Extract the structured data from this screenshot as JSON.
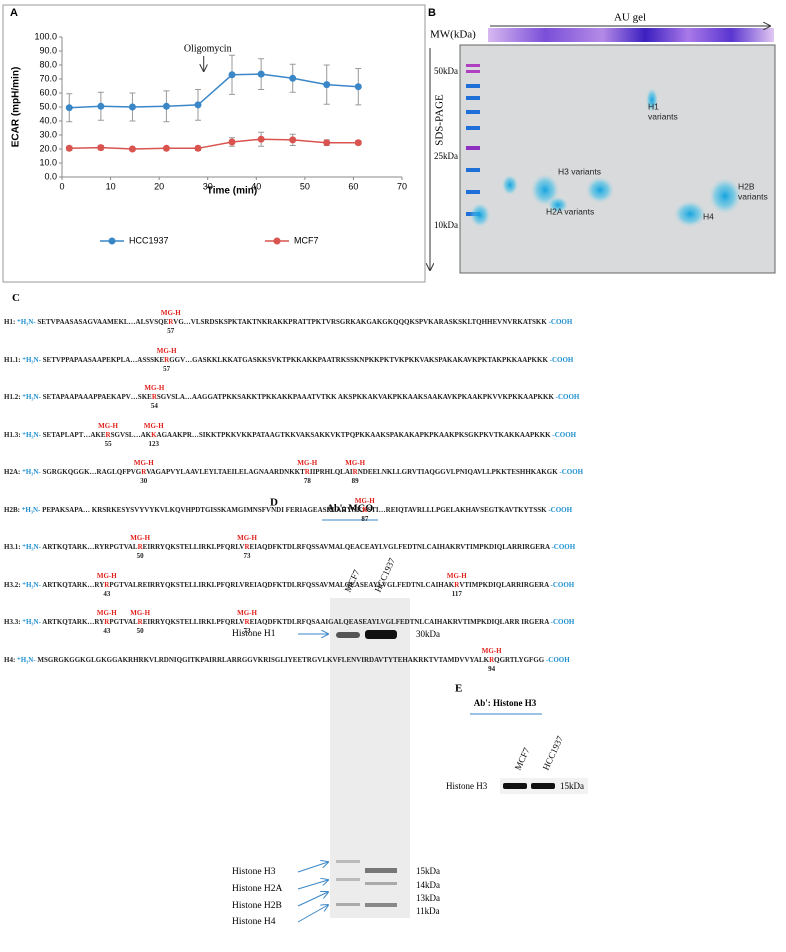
{
  "chart_data": {
    "type": "line",
    "panel_label": "A",
    "ylabel": "ECAR (mpH/min)",
    "xlabel": "Time (min)",
    "xlim": [
      0,
      70
    ],
    "xticks": [
      0,
      10,
      20,
      30,
      40,
      50,
      60,
      70
    ],
    "ylim": [
      0,
      100
    ],
    "yticks": [
      {
        "value": 0,
        "label": "0.0"
      },
      {
        "value": 10,
        "label": "10.0"
      },
      {
        "value": 20,
        "label": "20.0"
      },
      {
        "value": 30,
        "label": "30.0"
      },
      {
        "value": 40,
        "label": "40.0"
      },
      {
        "value": 50,
        "label": "50.0"
      },
      {
        "value": 60,
        "label": "60.0"
      },
      {
        "value": 70,
        "label": "70.0"
      },
      {
        "value": 80,
        "label": "80.0"
      },
      {
        "value": 90,
        "label": "90.0"
      },
      {
        "value": 100,
        "label": "100.0"
      }
    ],
    "x": [
      1.5,
      8,
      14.5,
      21.5,
      28,
      35,
      41,
      47.5,
      54.5,
      61
    ],
    "series": [
      {
        "name": "HCC1937",
        "color": "#3a87c8",
        "values": [
          49.5,
          50.5,
          50,
          50.5,
          51.5,
          73,
          73.5,
          70.5,
          66,
          64.5
        ],
        "errors": [
          10,
          10,
          10,
          11,
          11,
          14,
          11,
          10,
          14,
          13
        ]
      },
      {
        "name": "MCF7",
        "color": "#d9534f",
        "values": [
          20.5,
          21,
          20,
          20.5,
          20.5,
          25,
          27,
          26.5,
          24.5,
          24.5
        ],
        "errors": [
          1.5,
          1.5,
          1,
          1,
          1.5,
          3,
          5,
          4,
          2,
          1.5
        ]
      }
    ],
    "annotation": {
      "text": "Oligomycin",
      "x": 30
    },
    "legend": "bottom",
    "grid": false
  },
  "gel_b": {
    "panel_label": "B",
    "top_label": "AU gel",
    "mw_label": "MW(kDa)",
    "side_label": "SDS-PAGE",
    "markers": [
      "50kDa",
      "25kDa",
      "10kDa"
    ],
    "spots": [
      [
        "H1",
        "variants"
      ],
      [
        "H3 variants"
      ],
      [
        "H2A variants"
      ],
      [
        "H4"
      ],
      [
        "H2B",
        "variants"
      ]
    ]
  },
  "sequences": {
    "panel_label": "C",
    "site_label": "MG-H",
    "n_term": "⁺H₃N-",
    "c_term": "-COOH",
    "rows": [
      {
        "name": "H1:",
        "parts": [
          "SETVPAASASAGVAAMEKL…ALSVSQE",
          {
            "residue": "R",
            "position": 57
          },
          "VG…VLSRDSKSPKTAKTNKRAKKPRATTPKTVRSGRKAKGAKGKQQQKSPVKARASKSKLTQHHEVNVRKATSKK"
        ]
      },
      {
        "name": "H1.1:",
        "parts": [
          "SETVPPAPAASAAPEKPLA…ASSSKE",
          {
            "residue": "R",
            "position": 57
          },
          "GGV…GASKKLKKATGASKKSVKTPKKAKKPAATRKSSKNPKKPKTVKPKKVAKSPAKAKAVKPKTAKPKKAAPKKK"
        ]
      },
      {
        "name": "H1.2:",
        "parts": [
          "SETAPAAPAAAPPAEKAPV…SKE",
          {
            "residue": "R",
            "position": 54
          },
          "SGVSLA…AAGGATPKKSAKKTPKKAKKPAAATVTKK AKSPKKAKVAKPKKAAKSAAKAVKPKAAKPKVVKPKKAAPKKK"
        ]
      },
      {
        "name": "H1.3:",
        "parts": [
          "SETAPLAPT…AKE",
          {
            "residue": "R",
            "position": 55
          },
          "SGVSL…AK",
          {
            "residue": "K",
            "position": 123
          },
          "AGAAKPR…SIKKTPKKVKKPATAAGTKKVAKSAKKVKTPQPKKAAKSPAKAKAPKPKAAKPKSGKPKVTKAKKAAPKKK"
        ]
      },
      {
        "name": "H2A:",
        "parts": [
          "SGRGKQGGK…RAGLQFPVG",
          {
            "residue": "R",
            "position": 30
          },
          "VAGAPVYLAAVLEYLTAEILELAGNAARDNKKT",
          {
            "residue": "R",
            "position": 78
          },
          "IIPRHLQLAI",
          {
            "residue": "R",
            "position": 89
          },
          "NDEELNKLLGRVTIAQGGVLPNIQAVLLPKKTESHHKAKGK"
        ]
      },
      {
        "name": "H2B:",
        "parts": [
          "PEPAKSAPA… KRSRKESYSVYVYKVLKQVHPDTGISSKAMGIMNSFVNDI FERIAGEASRLAHYNK",
          {
            "residue": "R",
            "position": 87
          },
          "STI…REIQTAVRLLLPGELAKHAVSEGTKAVTKYTSSK"
        ]
      },
      {
        "name": "H3.1:",
        "parts": [
          "ARTKQTARK…RYRPGTVAL",
          {
            "residue": "R",
            "position": 50
          },
          "EIRRYQKSTELLIRKLPFQRLV",
          {
            "residue": "R",
            "position": 73
          },
          "EIAQDFKTDLRFQSSAVMALQEACEAYLVGLFEDTNLCAIHAKRVTIMPKDIQLARRIRGERA"
        ]
      },
      {
        "name": "H3.2:",
        "parts": [
          "ARTKQTARK…RY",
          {
            "residue": "R",
            "position": 43
          },
          "PGTVALREIRRYQKSTELLIRKLPFQRLVREIAQDFKTDLRFQSSAVMALQEASEAYLVGLFEDTNLCAIHAK",
          {
            "residue": "R",
            "position": 117
          },
          "VTIMPKDIQLARRIRGERA"
        ]
      },
      {
        "name": "H3.3:",
        "parts": [
          "ARTKQTARK…RY",
          {
            "residue": "R",
            "position": 43
          },
          "PGTVAL",
          {
            "residue": "R",
            "position": 50
          },
          "EIRRYQKSTELLIRKLPFQRLV",
          {
            "residue": "R",
            "position": 73
          },
          "EIAQDFKTDLRFQSAAIGALQEASEAYLVGLFEDTNLCAIHAKRVTIMPKDIQLARR IRGERA"
        ]
      },
      {
        "name": "H4:",
        "parts": [
          "MSGRGKGGKGLGKGGAKRHRKVLRDNIQGITKPAIRRLARRGGVKRISGLIYEETRGVLKVFLENVIRDAVTYTEHAKRKTVTAMDVVYALK",
          {
            "residue": "R",
            "position": 94
          },
          "QGRTLYGFGG"
        ]
      }
    ]
  },
  "blot_d": {
    "panel_label": "D",
    "antibody": "Ab': MGO",
    "lanes": [
      "MCF7",
      "HCC1937"
    ],
    "bands": [
      "Histone H1",
      "Histone H3",
      "Histone H2A",
      "Histone H2B",
      "Histone H4"
    ],
    "markers": [
      "30kDa",
      "15kDa",
      "14kDa",
      "13kDa",
      "11kDa"
    ]
  },
  "blot_e": {
    "panel_label": "E",
    "antibody": "Ab': Histone H3",
    "lanes": [
      "MCF7",
      "HCC1937"
    ],
    "band": "Histone H3",
    "marker": "15kDa"
  }
}
